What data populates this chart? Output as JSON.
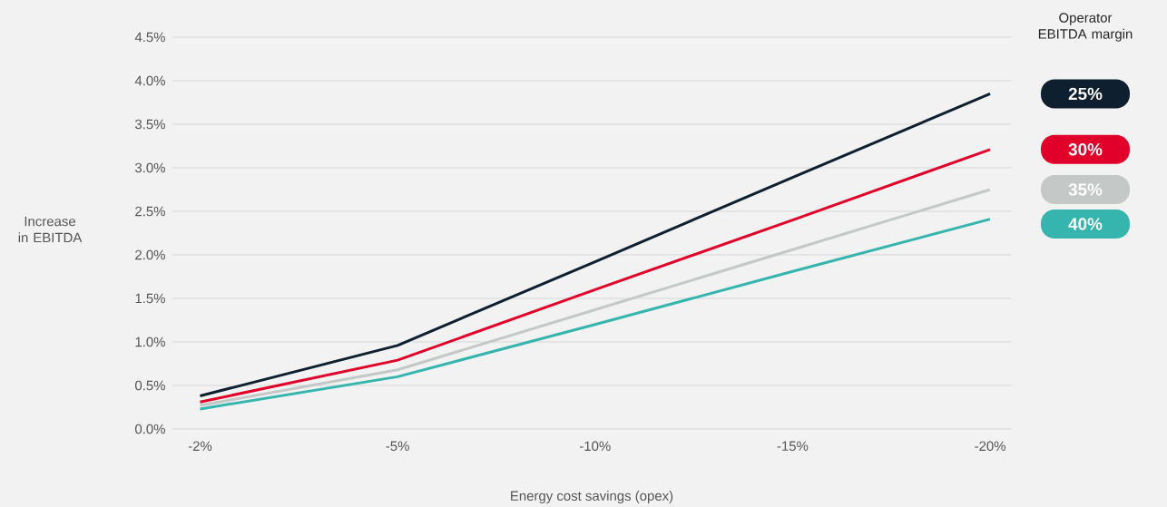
{
  "chart_data": {
    "type": "line",
    "xlabel": "Energy cost savings (opex)",
    "ylabel": "Increase in EBITDA",
    "legend_title": "Operator EBITDA margin",
    "legend": "right",
    "grid": "y",
    "categories": [
      "-2%",
      "-5%",
      "-10%",
      "-15%",
      "-20%"
    ],
    "ylim": [
      0,
      4.5
    ],
    "yticks": [
      {
        "value": 0,
        "label": "0.0%"
      },
      {
        "value": 0.5,
        "label": "0.5%"
      },
      {
        "value": 1,
        "label": "1.0%"
      },
      {
        "value": 1.5,
        "label": "1.5%"
      },
      {
        "value": 2,
        "label": "2.0%"
      },
      {
        "value": 2.5,
        "label": "2.5%"
      },
      {
        "value": 3,
        "label": "3.0%"
      },
      {
        "value": 3.5,
        "label": "3.5%"
      },
      {
        "value": 4,
        "label": "4.0%"
      },
      {
        "value": 4.5,
        "label": "4.5%"
      }
    ],
    "series": [
      {
        "name": "25%",
        "color": "#0e1f30",
        "values": [
          0.38,
          0.96,
          1.92,
          2.89,
          3.85
        ]
      },
      {
        "name": "30%",
        "color": "#e0002a",
        "values": [
          0.31,
          0.79,
          1.6,
          2.4,
          3.21
        ]
      },
      {
        "name": "35%",
        "color": "#c4c8c6",
        "values": [
          0.27,
          0.68,
          1.37,
          2.06,
          2.75
        ]
      },
      {
        "name": "40%",
        "color": "#35b5ae",
        "values": [
          0.23,
          0.6,
          1.2,
          1.81,
          2.41
        ]
      }
    ]
  }
}
